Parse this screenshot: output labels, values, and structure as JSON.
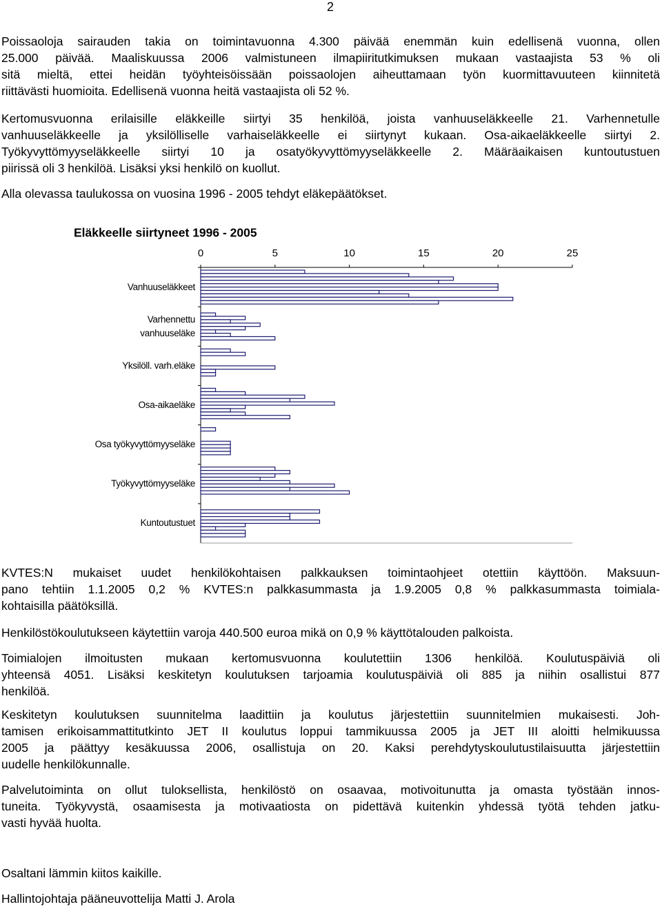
{
  "page_number": "2",
  "paragraphs_top": [
    [
      "Poissaoloja sairauden takia on toimintavuonna 4.300 päivää enemmän kuin edellisenä vuonna, ollen",
      "25.000 päivää. Maaliskuussa 2006 valmistuneen ilmapiiritutkimuksen mukaan vastaajista 53 % oli",
      "sitä mieltä, ettei heidän työyhteisöissään poissaolojen aiheuttamaan työn kuormittavuuteen kiinnitetä",
      "riittävästi huomioita. Edellisenä vuonna heitä vastaajista oli 52 %."
    ],
    [
      "Kertomusvuonna erilaisille eläkkeille siirtyi 35 henkilöä, joista vanhuuseläkkeelle 21. Varhennetulle",
      "vanhuuseläkkeelle ja yksilölliselle varhaiseläkkeelle ei siirtynyt kukaan. Osa-aikaeläkkeelle siirtyi 2.",
      "Työkyvyttömyyseläkkeelle siirtyi 10 ja osatyökyvyttömyyseläkkeelle 2. Määräaikaisen kuntoutustuen",
      "piirissä oli 3 henkilöä. Lisäksi yksi henkilö on kuollut."
    ],
    [
      "Alla olevassa taulukossa on vuosina 1996 - 2005 tehdyt eläkepäätökset."
    ]
  ],
  "chart_data": {
    "type": "bar",
    "orientation": "horizontal",
    "title": "Eläkkeelle siirtyneet 1996 - 2005",
    "categories": [
      "Vanhuuseläkkeet",
      "Varhennettu\nvanhuuseläke",
      "Yksilöll. varh.eläke",
      "Osa-aikaeläke",
      "Osa työkyvyttömyyseläke",
      "Työkyvyttömyyseläke",
      "Kuntoutustuet"
    ],
    "color": "#1a1a70",
    "series": [
      {
        "values": [
          7,
          0,
          2,
          1,
          1,
          5,
          0
        ]
      },
      {
        "values": [
          14,
          1,
          3,
          3,
          0,
          6,
          8
        ]
      },
      {
        "values": [
          17,
          3,
          0,
          7,
          0,
          5,
          6
        ]
      },
      {
        "values": [
          16,
          2,
          0,
          6,
          0,
          4,
          6
        ]
      },
      {
        "values": [
          20,
          4,
          0,
          9,
          2,
          6,
          8
        ]
      },
      {
        "values": [
          20,
          3,
          5,
          3,
          2,
          9,
          3
        ]
      },
      {
        "values": [
          12,
          1,
          1,
          2,
          2,
          6,
          1
        ]
      },
      {
        "values": [
          14,
          2,
          1,
          3,
          2,
          10,
          3
        ]
      },
      {
        "values": [
          21,
          5,
          0,
          6,
          0,
          0,
          3
        ]
      },
      {
        "values": [
          16,
          0,
          0,
          0,
          0,
          0,
          0
        ]
      }
    ],
    "xlim": [
      0,
      25
    ],
    "xticks": [
      0,
      5,
      10,
      15,
      20,
      25
    ],
    "grid": false
  },
  "paragraphs_bottom": [
    [
      "KVTES:N mukaiset uudet henkilökohtaisen palkkauksen toimintaohjeet otettiin käyttöön. Maksuun-",
      "pano tehtiin 1.1.2005 0,2 % KVTES:n palkkasummasta ja 1.9.2005 0,8 % palkkasummasta toimiala-",
      "kohtaisilla päätöksillä."
    ],
    [
      "Henkilöstökoulutukseen käytettiin varoja 440.500 euroa mikä on 0,9 % käyttötalouden palkoista."
    ],
    [
      "Toimialojen ilmoitusten mukaan kertomusvuonna koulutettiin 1306 henkilöä. Koulutuspäiviä oli",
      "yhteensä 4051. Lisäksi keskitetyn koulutuksen tarjoamia koulutuspäiviä oli 885 ja niihin osallistui 877",
      "henkilöä."
    ],
    [
      "Keskitetyn koulutuksen suunnitelma laadittiin ja koulutus järjestettiin suunnitelmien mukaisesti. Joh-",
      "tamisen erikoisammattitutkinto JET II koulutus loppui tammikuussa 2005 ja JET III aloitti helmikuussa",
      "2005 ja päättyy kesäkuussa 2006, osallistuja on 20.  Kaksi perehdytyskoulutustilaisuutta järjestettiin",
      "uudelle henkilökunnalle."
    ],
    [
      "Palvelutoiminta on ollut tuloksellista, henkilöstö on osaavaa, motivoitunutta ja omasta työstään innos-",
      "tuneita. Työkyvystä, osaamisesta ja motivaatiosta on pidettävä kuitenkin yhdessä työtä tehden jatku-",
      "vasti hyvää huolta."
    ]
  ],
  "closing": [
    "Osaltani lämmin kiitos kaikille.",
    "Hallintojohtaja pääneuvottelija Matti J. Arola"
  ]
}
